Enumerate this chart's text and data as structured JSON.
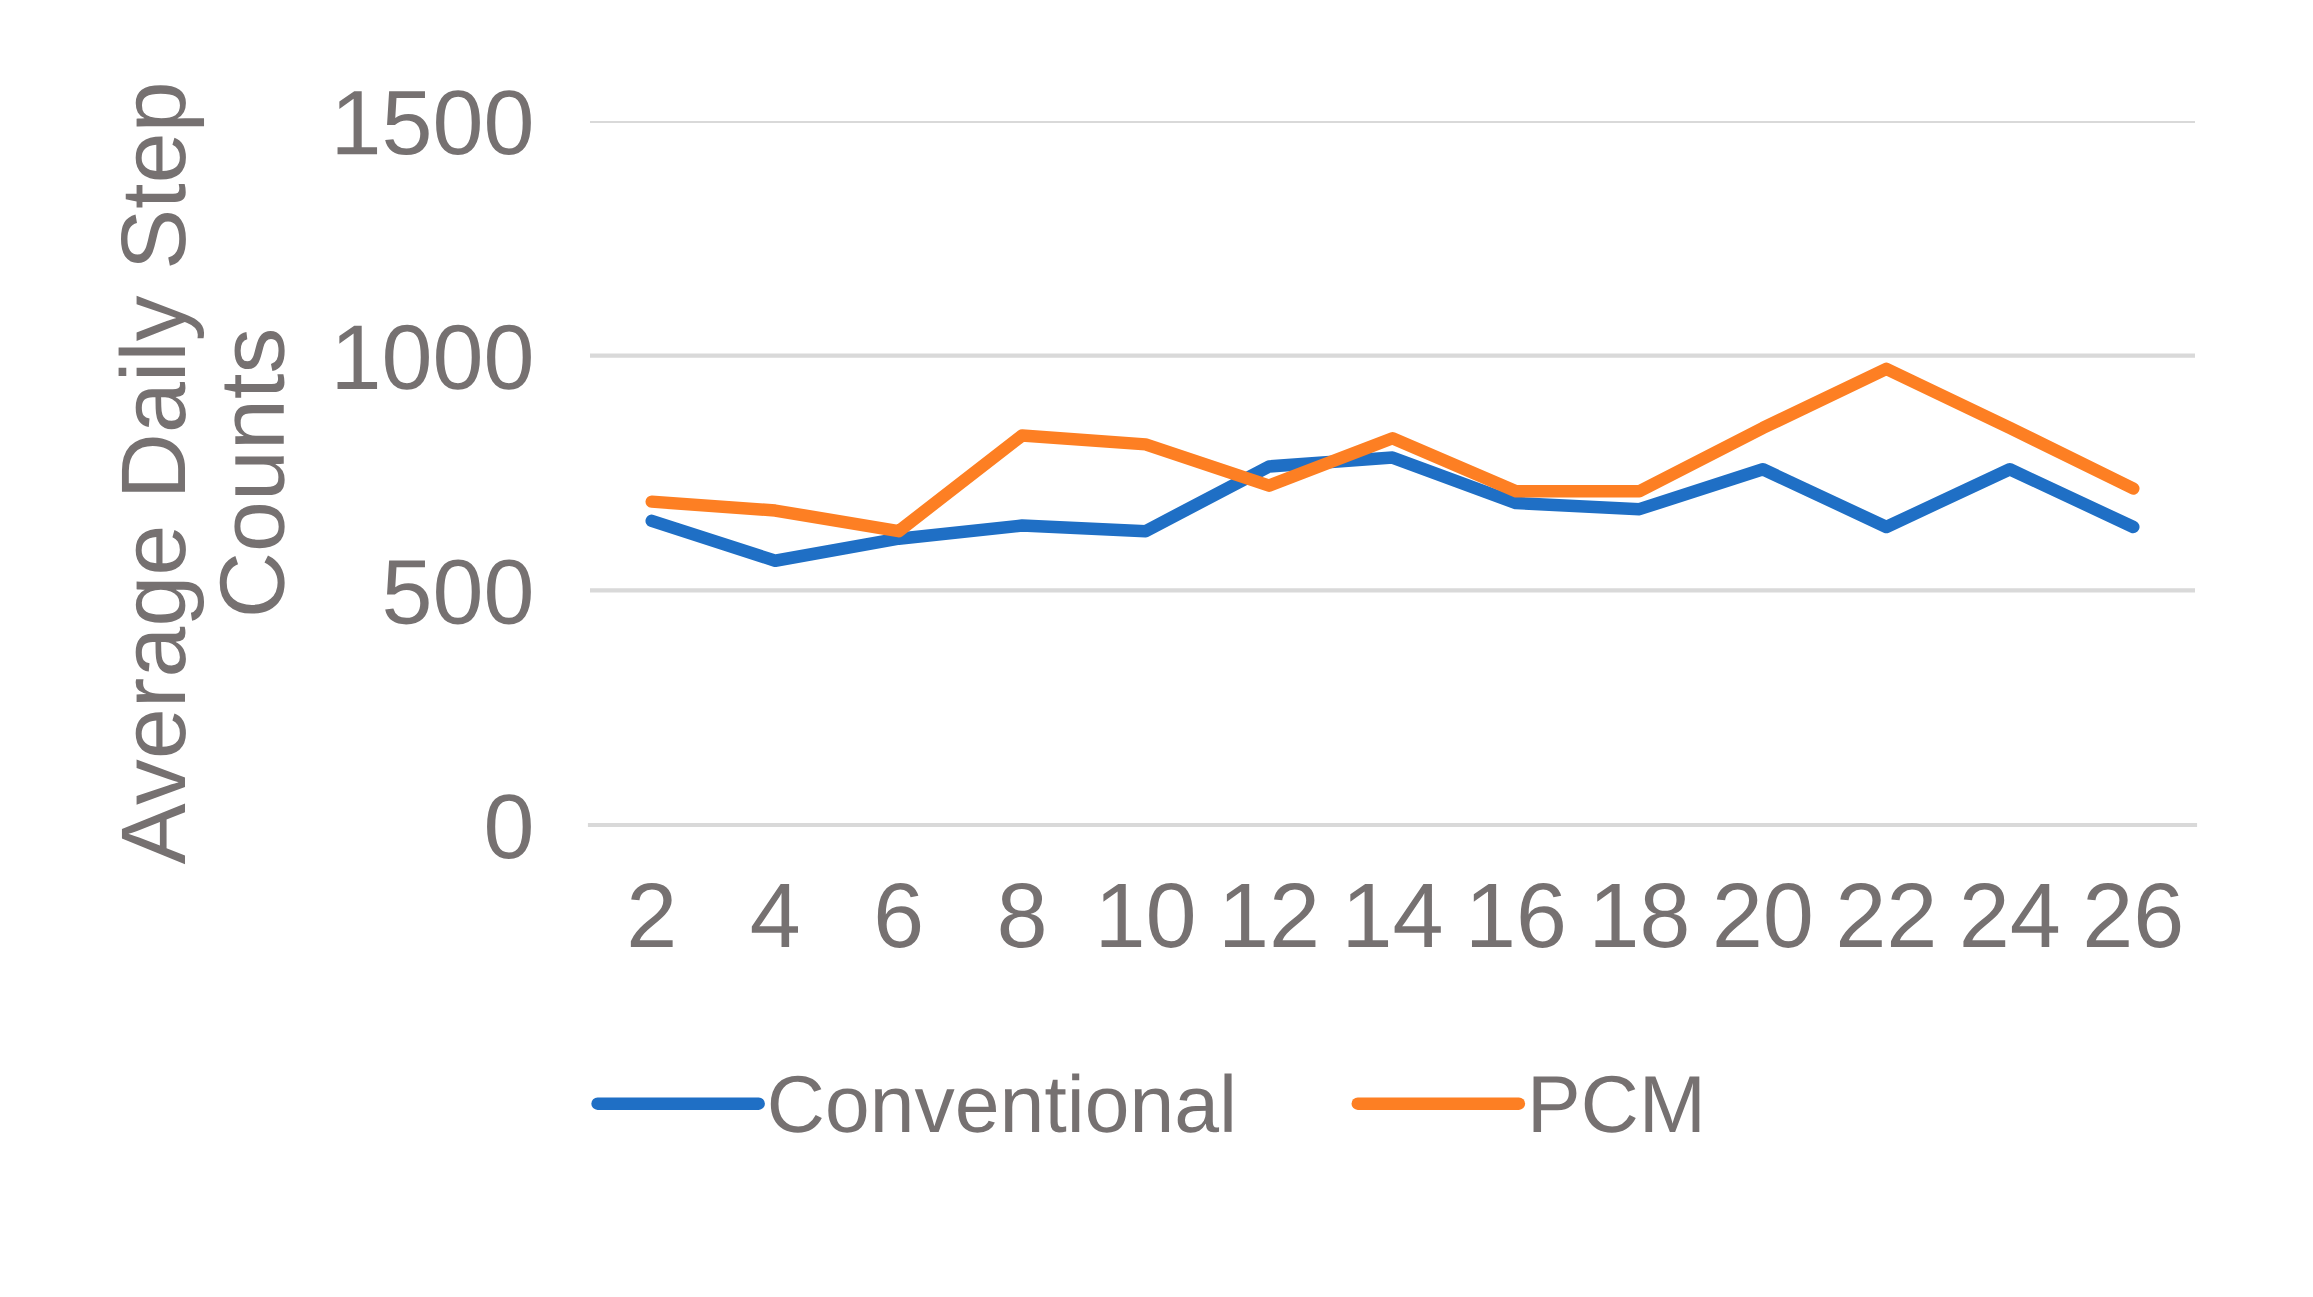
{
  "chart_data": {
    "type": "line",
    "ylabel": "Average Daily Step Counts",
    "categories": [
      "2",
      "4",
      "6",
      "8",
      "10",
      "12",
      "14",
      "16",
      "18",
      "20",
      "22",
      "24",
      "26"
    ],
    "series": [
      {
        "name": "Conventional",
        "color": "#1f6fc5",
        "values": [
          648,
          563,
          610,
          638,
          626,
          764,
          783,
          686,
          673,
          758,
          635,
          758,
          635
        ]
      },
      {
        "name": "PCM",
        "color": "#fd7f23",
        "values": [
          689,
          670,
          626,
          830,
          811,
          723,
          824,
          711,
          711,
          846,
          972,
          846,
          717
        ]
      }
    ],
    "ylim": [
      0,
      1500
    ],
    "yticks": [
      0,
      500,
      1000,
      1500
    ],
    "grid": "y",
    "legend": "bottom",
    "line_style": "solid"
  }
}
